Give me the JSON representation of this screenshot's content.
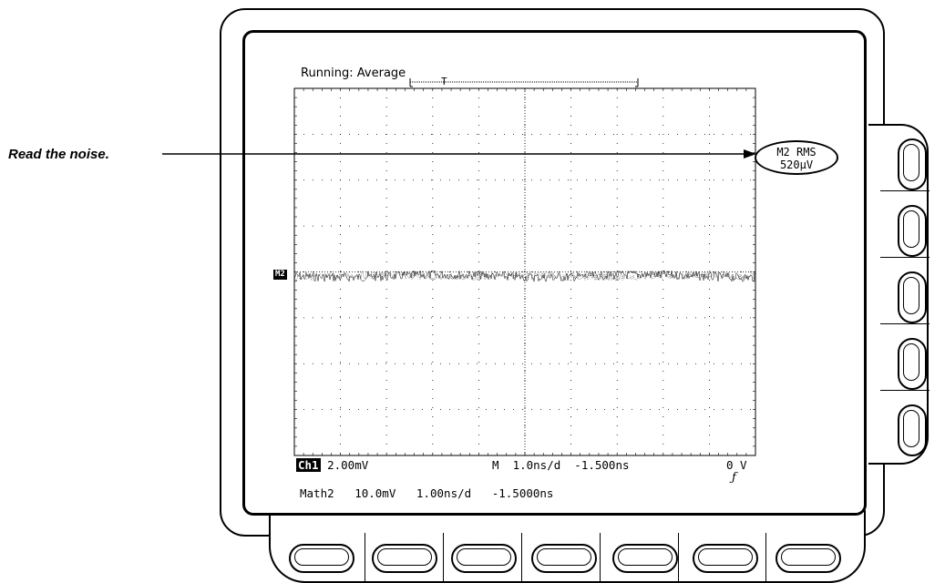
{
  "status": {
    "acquisition": "Running: Average"
  },
  "trigger": {
    "marker": "T"
  },
  "waveform": {
    "label": "M2"
  },
  "measurement": {
    "name": "M2 RMS",
    "value": "520µV"
  },
  "annotation": {
    "text": "Read the noise."
  },
  "readout": {
    "ch1_badge": "Ch1",
    "ch1_scale": " 2.00mV",
    "timebase": "M  1.0ns/d  -1.500ns",
    "trigger_level": "0 V",
    "math_line": "Math2   10.0mV   1.00ns/d   -1.5000ns"
  },
  "icons": {
    "slope": "rising-edge-icon"
  },
  "side_buttons": 5,
  "bottom_buttons": 7
}
